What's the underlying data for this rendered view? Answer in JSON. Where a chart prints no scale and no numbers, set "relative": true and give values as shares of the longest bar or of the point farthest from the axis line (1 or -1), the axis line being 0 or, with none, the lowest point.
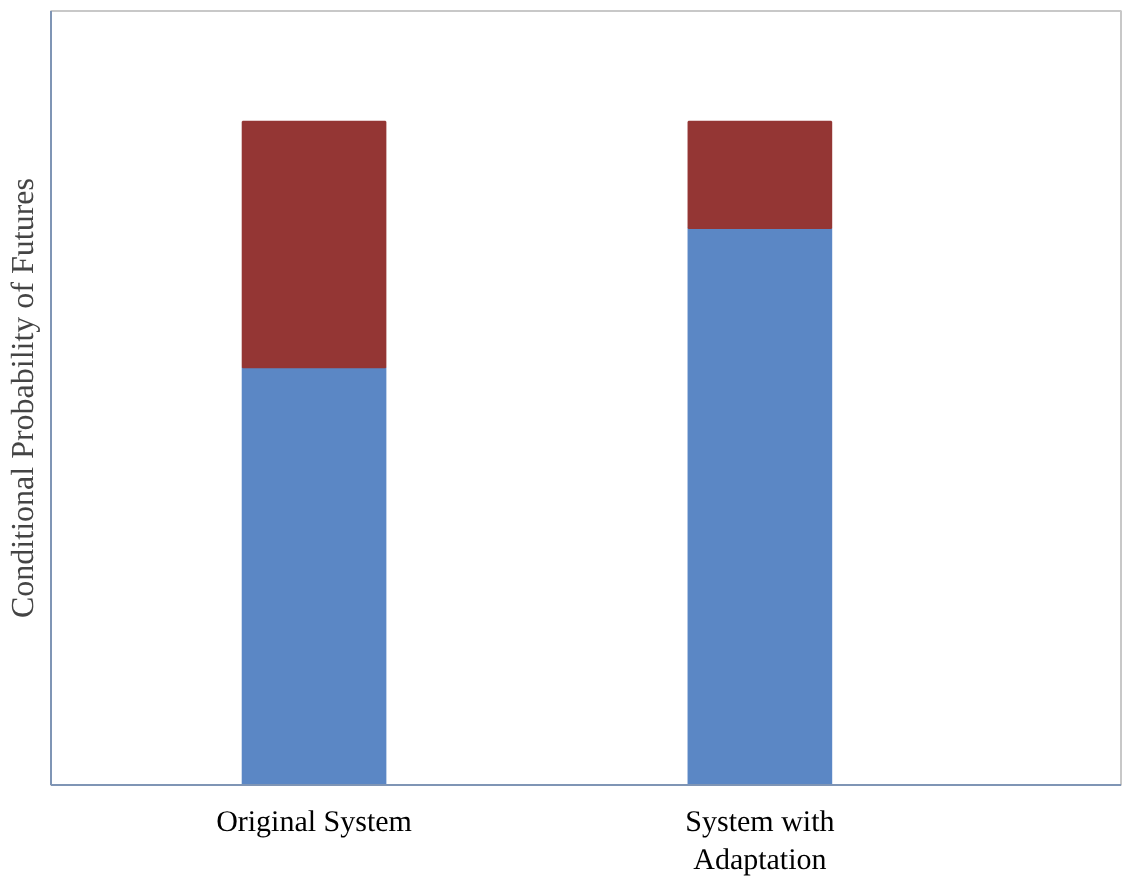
{
  "chart_data": {
    "type": "bar",
    "stacked": true,
    "relative": true,
    "ylabel": "Conditional Probability of Futures",
    "categories": [
      "Original System",
      "System with\nAdaptation"
    ],
    "series": [
      {
        "color": "#5b87c5",
        "values": [
          0.63,
          0.84
        ]
      },
      {
        "color": "#943634",
        "values": [
          0.37,
          0.16
        ]
      }
    ],
    "grid": false
  }
}
